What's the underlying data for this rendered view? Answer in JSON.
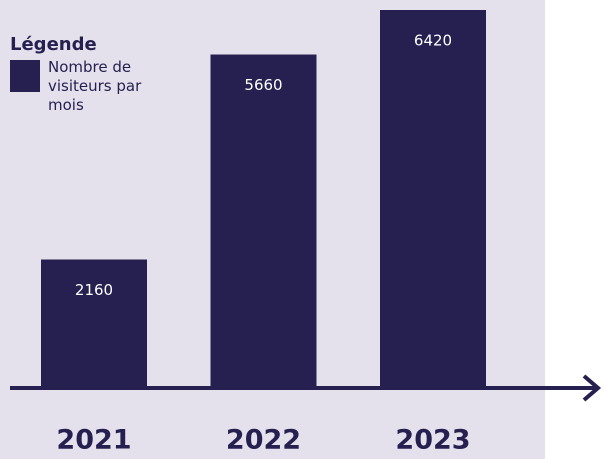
{
  "chart_data": {
    "type": "bar",
    "legend_title": "Légende",
    "categories": [
      "2021",
      "2022",
      "2023"
    ],
    "series": [
      {
        "name": "Nombre de visiteurs par mois",
        "color": "#252050",
        "values": [
          2160,
          5660,
          6420
        ]
      }
    ]
  }
}
